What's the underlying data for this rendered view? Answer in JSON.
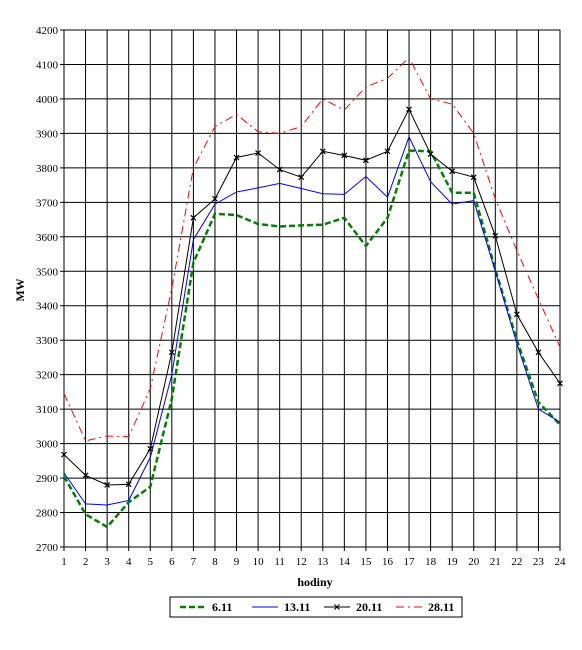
{
  "chart_data": {
    "type": "line",
    "title": "",
    "xlabel": "hodiny",
    "ylabel": "MW",
    "x": [
      1,
      2,
      3,
      4,
      5,
      6,
      7,
      8,
      9,
      10,
      11,
      12,
      13,
      14,
      15,
      16,
      17,
      18,
      19,
      20,
      21,
      22,
      23,
      24
    ],
    "ylim": [
      2700,
      4200
    ],
    "ystep": 100,
    "grid": "on",
    "legend_position": "bottom",
    "series": [
      {
        "name": "6.11",
        "color": "#008000",
        "style": "dashed-thick",
        "values": [
          2905,
          2795,
          2758,
          2830,
          2875,
          3130,
          3525,
          3667,
          3663,
          3637,
          3630,
          3633,
          3635,
          3655,
          3573,
          3655,
          3850,
          3848,
          3728,
          3728,
          3505,
          3300,
          3120,
          3055
        ]
      },
      {
        "name": "13.11",
        "color": "#0000ff",
        "style": "solid",
        "values": [
          2915,
          2825,
          2822,
          2835,
          2960,
          3200,
          3592,
          3695,
          3730,
          3742,
          3755,
          3740,
          3725,
          3723,
          3775,
          3715,
          3890,
          3760,
          3695,
          3705,
          3500,
          3290,
          3100,
          3062
        ]
      },
      {
        "name": "20.11",
        "color": "#000000",
        "style": "solid-marker",
        "values": [
          2968,
          2908,
          2880,
          2882,
          2985,
          3265,
          3655,
          3710,
          3830,
          3843,
          3795,
          3773,
          3848,
          3836,
          3822,
          3848,
          3970,
          3840,
          3790,
          3773,
          3603,
          3375,
          3265,
          3175
        ]
      },
      {
        "name": "28.11",
        "color": "#ff0000",
        "style": "dash-dot",
        "values": [
          3145,
          3008,
          3022,
          3020,
          3160,
          3450,
          3800,
          3920,
          3955,
          3905,
          3900,
          3920,
          4000,
          3968,
          4035,
          4060,
          4120,
          4000,
          3985,
          3900,
          3710,
          3560,
          3420,
          3280
        ]
      }
    ]
  }
}
